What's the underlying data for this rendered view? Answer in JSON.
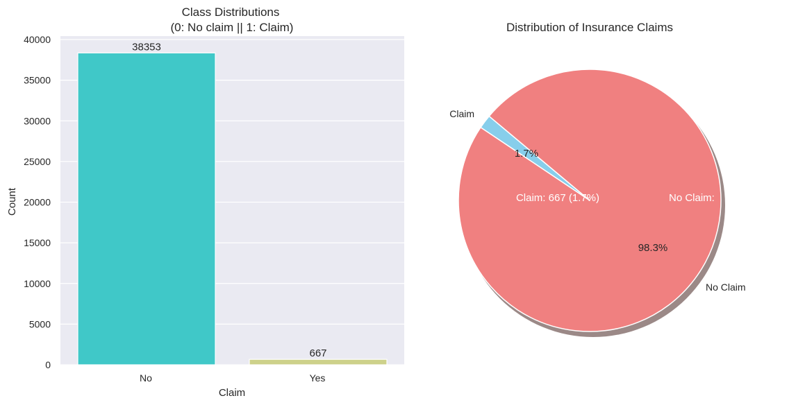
{
  "chart_data": [
    {
      "type": "bar",
      "title": "Class Distributions",
      "subtitle": "(0: No claim || 1: Claim)",
      "xlabel": "Claim",
      "ylabel": "Count",
      "categories": [
        "No",
        "Yes"
      ],
      "values": [
        38353,
        667
      ],
      "data_labels": [
        "38353",
        "667"
      ],
      "colors": [
        "#40c8c8",
        "#cdd18a"
      ],
      "ylim": [
        0,
        40000
      ],
      "yticks": [
        0,
        5000,
        10000,
        15000,
        20000,
        25000,
        30000,
        35000,
        40000
      ],
      "ytick_labels": [
        "0",
        "5000",
        "10000",
        "15000",
        "20000",
        "25000",
        "30000",
        "35000",
        "40000"
      ],
      "grid": true,
      "background": "#eaeaf2"
    },
    {
      "type": "pie",
      "title": "Distribution of Insurance Claims",
      "labels": [
        "Claim",
        "No Claim"
      ],
      "values": [
        667,
        38353
      ],
      "percentages": [
        "1.7%",
        "98.3%"
      ],
      "colors": [
        "#87ceeb",
        "#f08080"
      ],
      "start_angle": 140,
      "shadow": true,
      "annotations": [
        "Claim: 667 (1.7%)",
        "No Claim:"
      ]
    }
  ],
  "bar": {
    "title_line1": "Class Distributions",
    "title_line2": "(0: No claim || 1: Claim)",
    "xlabel": "Claim",
    "ylabel": "Count"
  },
  "pie": {
    "title": "Distribution of Insurance Claims",
    "label_claim": "Claim",
    "label_noclaim": "No Claim",
    "pct_claim": "1.7%",
    "pct_noclaim": "98.3%",
    "annot_claim": "Claim: 667 (1.7%)",
    "annot_noclaim": "No Claim:"
  }
}
